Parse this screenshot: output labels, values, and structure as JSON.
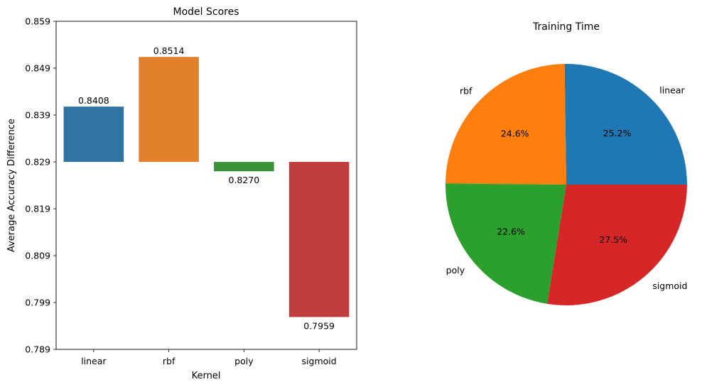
{
  "chart_data": [
    {
      "type": "bar",
      "title": "Model Scores",
      "xlabel": "Kernel",
      "ylabel": "Average Accuracy Difference",
      "baseline": 0.829,
      "ylim": [
        0.789,
        0.859
      ],
      "yticks": [
        "0.789",
        "0.799",
        "0.809",
        "0.819",
        "0.829",
        "0.839",
        "0.849",
        "0.859"
      ],
      "categories": [
        "linear",
        "rbf",
        "poly",
        "sigmoid"
      ],
      "values": [
        0.8408,
        0.8514,
        0.827,
        0.7959
      ],
      "value_labels": [
        "0.8408",
        "0.8514",
        "0.8270",
        "0.7959"
      ],
      "colors": [
        "#3274a1",
        "#e1812c",
        "#3a923a",
        "#c03d3e"
      ],
      "grid": false
    },
    {
      "type": "pie",
      "title": "Training Time",
      "labels": [
        "linear",
        "rbf",
        "poly",
        "sigmoid"
      ],
      "values": [
        25.2,
        24.6,
        22.6,
        27.5
      ],
      "pct_labels": [
        "25.2%",
        "24.6%",
        "22.6%",
        "27.5%"
      ],
      "colors": [
        "#1f77b4",
        "#ff7f0e",
        "#2ca02c",
        "#d62728"
      ]
    }
  ]
}
